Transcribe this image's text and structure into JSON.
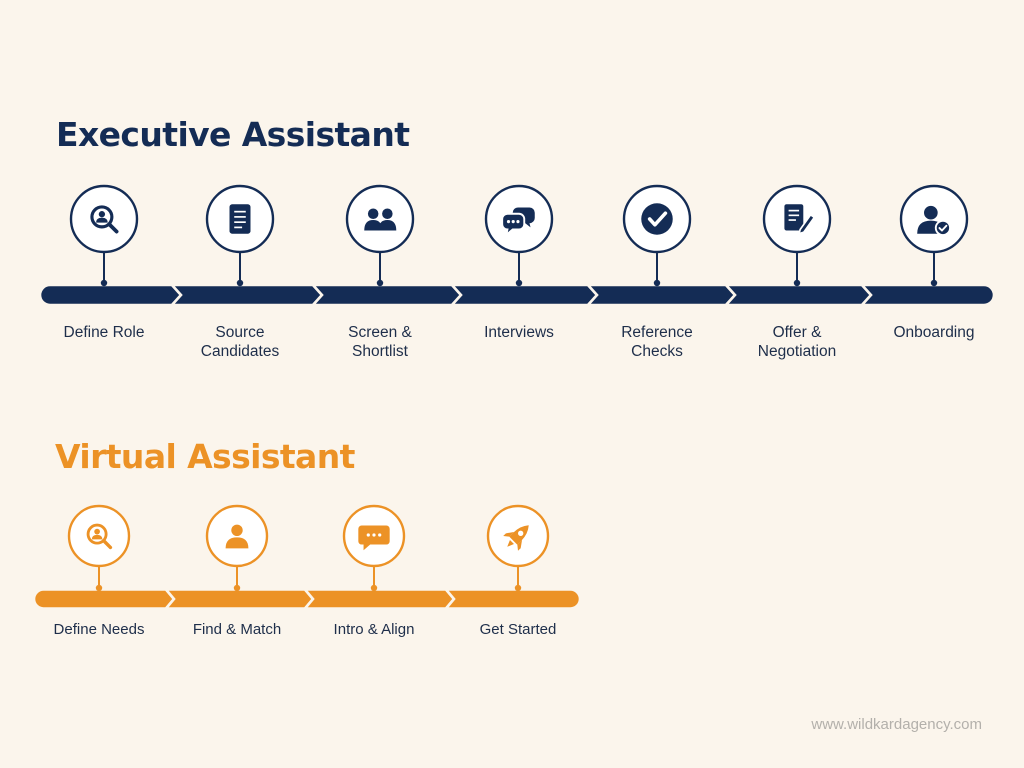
{
  "colors": {
    "background": "#fbf5ec",
    "navy": "#142c55",
    "orange": "#ec9226",
    "label": "#1e2e4a",
    "watermark": "#b3b0ab"
  },
  "executive": {
    "title": "Executive Assistant",
    "steps": [
      {
        "label": "Define Role",
        "lines": [
          "Define Role"
        ],
        "icon": "search-user-icon"
      },
      {
        "label": "Source Candidates",
        "lines": [
          "Source",
          "Candidates"
        ],
        "icon": "document-icon"
      },
      {
        "label": "Screen & Shortlist",
        "lines": [
          "Screen &",
          "Shortlist"
        ],
        "icon": "group-icon"
      },
      {
        "label": "Interviews",
        "lines": [
          "Interviews"
        ],
        "icon": "chat-bubbles-icon"
      },
      {
        "label": "Reference Checks",
        "lines": [
          "Reference",
          "Checks"
        ],
        "icon": "checkmark-icon"
      },
      {
        "label": "Offer & Negotiation",
        "lines": [
          "Offer &",
          "Negotiation"
        ],
        "icon": "contract-pen-icon"
      },
      {
        "label": "Onboarding",
        "lines": [
          "Onboarding"
        ],
        "icon": "user-check-icon"
      }
    ]
  },
  "virtual": {
    "title": "Virtual Assistant",
    "steps": [
      {
        "label": "Define Needs",
        "lines": [
          "Define Needs"
        ],
        "icon": "search-user-icon"
      },
      {
        "label": "Find & Match",
        "lines": [
          "Find & Match"
        ],
        "icon": "person-icon"
      },
      {
        "label": "Intro & Align",
        "lines": [
          "Intro & Align"
        ],
        "icon": "chat-icon"
      },
      {
        "label": "Get Started",
        "lines": [
          "Get Started"
        ],
        "icon": "rocket-icon"
      }
    ]
  },
  "footer": {
    "website": "www.wildkardagency.com"
  }
}
